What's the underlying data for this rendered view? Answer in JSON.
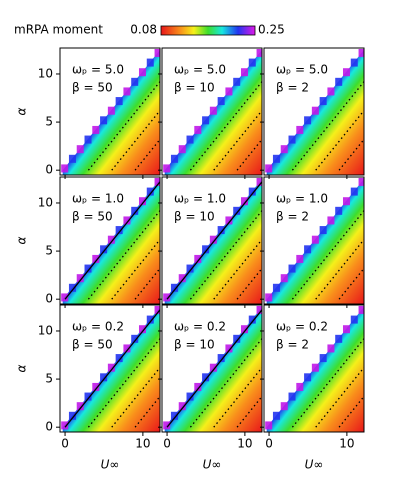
{
  "colorbar": {
    "label": "mRPA moment",
    "limits": [
      0.08,
      0.25
    ]
  },
  "chart_data": [
    {
      "type": "heatmap",
      "annotations": [
        "ωₚ = 5.0",
        "β = 50"
      ],
      "ylabel": "α",
      "xlim": [
        -0.65,
        12.2
      ],
      "ylim": [
        -0.5,
        12.7
      ],
      "xticks": [
        0,
        10
      ],
      "yticks": [
        0,
        5,
        10
      ]
    },
    {
      "type": "heatmap",
      "annotations": [
        "ωₚ = 5.0",
        "β = 10"
      ],
      "xlim": [
        -0.65,
        12.2
      ],
      "ylim": [
        -0.5,
        12.7
      ],
      "xticks": [
        0,
        10
      ],
      "yticks": [
        0,
        5,
        10
      ]
    },
    {
      "type": "heatmap",
      "annotations": [
        "ωₚ = 5.0",
        "β = 2"
      ],
      "xlim": [
        -0.65,
        12.2
      ],
      "ylim": [
        -0.5,
        12.7
      ],
      "xticks": [
        0,
        10
      ],
      "yticks": [
        0,
        5,
        10
      ]
    },
    {
      "type": "heatmap",
      "annotations": [
        "ωₚ = 1.0",
        "β = 50"
      ],
      "ylabel": "α",
      "xlim": [
        -0.65,
        12.2
      ],
      "ylim": [
        -0.5,
        12.7
      ],
      "xticks": [
        0,
        10
      ],
      "yticks": [
        0,
        5,
        10
      ]
    },
    {
      "type": "heatmap",
      "annotations": [
        "ωₚ = 1.0",
        "β = 10"
      ],
      "xlim": [
        -0.65,
        12.2
      ],
      "ylim": [
        -0.5,
        12.7
      ],
      "xticks": [
        0,
        10
      ],
      "yticks": [
        0,
        5,
        10
      ]
    },
    {
      "type": "heatmap",
      "annotations": [
        "ωₚ = 1.0",
        "β = 2"
      ],
      "xlim": [
        -0.65,
        12.2
      ],
      "ylim": [
        -0.5,
        12.7
      ],
      "xticks": [
        0,
        10
      ],
      "yticks": [
        0,
        5,
        10
      ]
    },
    {
      "type": "heatmap",
      "annotations": [
        "ωₚ = 0.2",
        "β = 50"
      ],
      "ylabel": "α",
      "xlabel": "U∞",
      "xlim": [
        -0.65,
        12.2
      ],
      "ylim": [
        -0.5,
        12.7
      ],
      "xticks": [
        0,
        10
      ],
      "yticks": [
        0,
        5,
        10
      ]
    },
    {
      "type": "heatmap",
      "annotations": [
        "ωₚ = 0.2",
        "β = 10"
      ],
      "xlabel": "U∞",
      "xlim": [
        -0.65,
        12.2
      ],
      "ylim": [
        -0.5,
        12.7
      ],
      "xticks": [
        0,
        10
      ],
      "yticks": [
        0,
        5,
        10
      ]
    },
    {
      "type": "heatmap",
      "annotations": [
        "ωₚ = 0.2",
        "β = 2"
      ],
      "xlabel": "U∞",
      "xlim": [
        -0.65,
        12.2
      ],
      "ylim": [
        -0.5,
        12.7
      ],
      "xticks": [
        0,
        10
      ],
      "yticks": [
        0,
        5,
        10
      ]
    }
  ]
}
